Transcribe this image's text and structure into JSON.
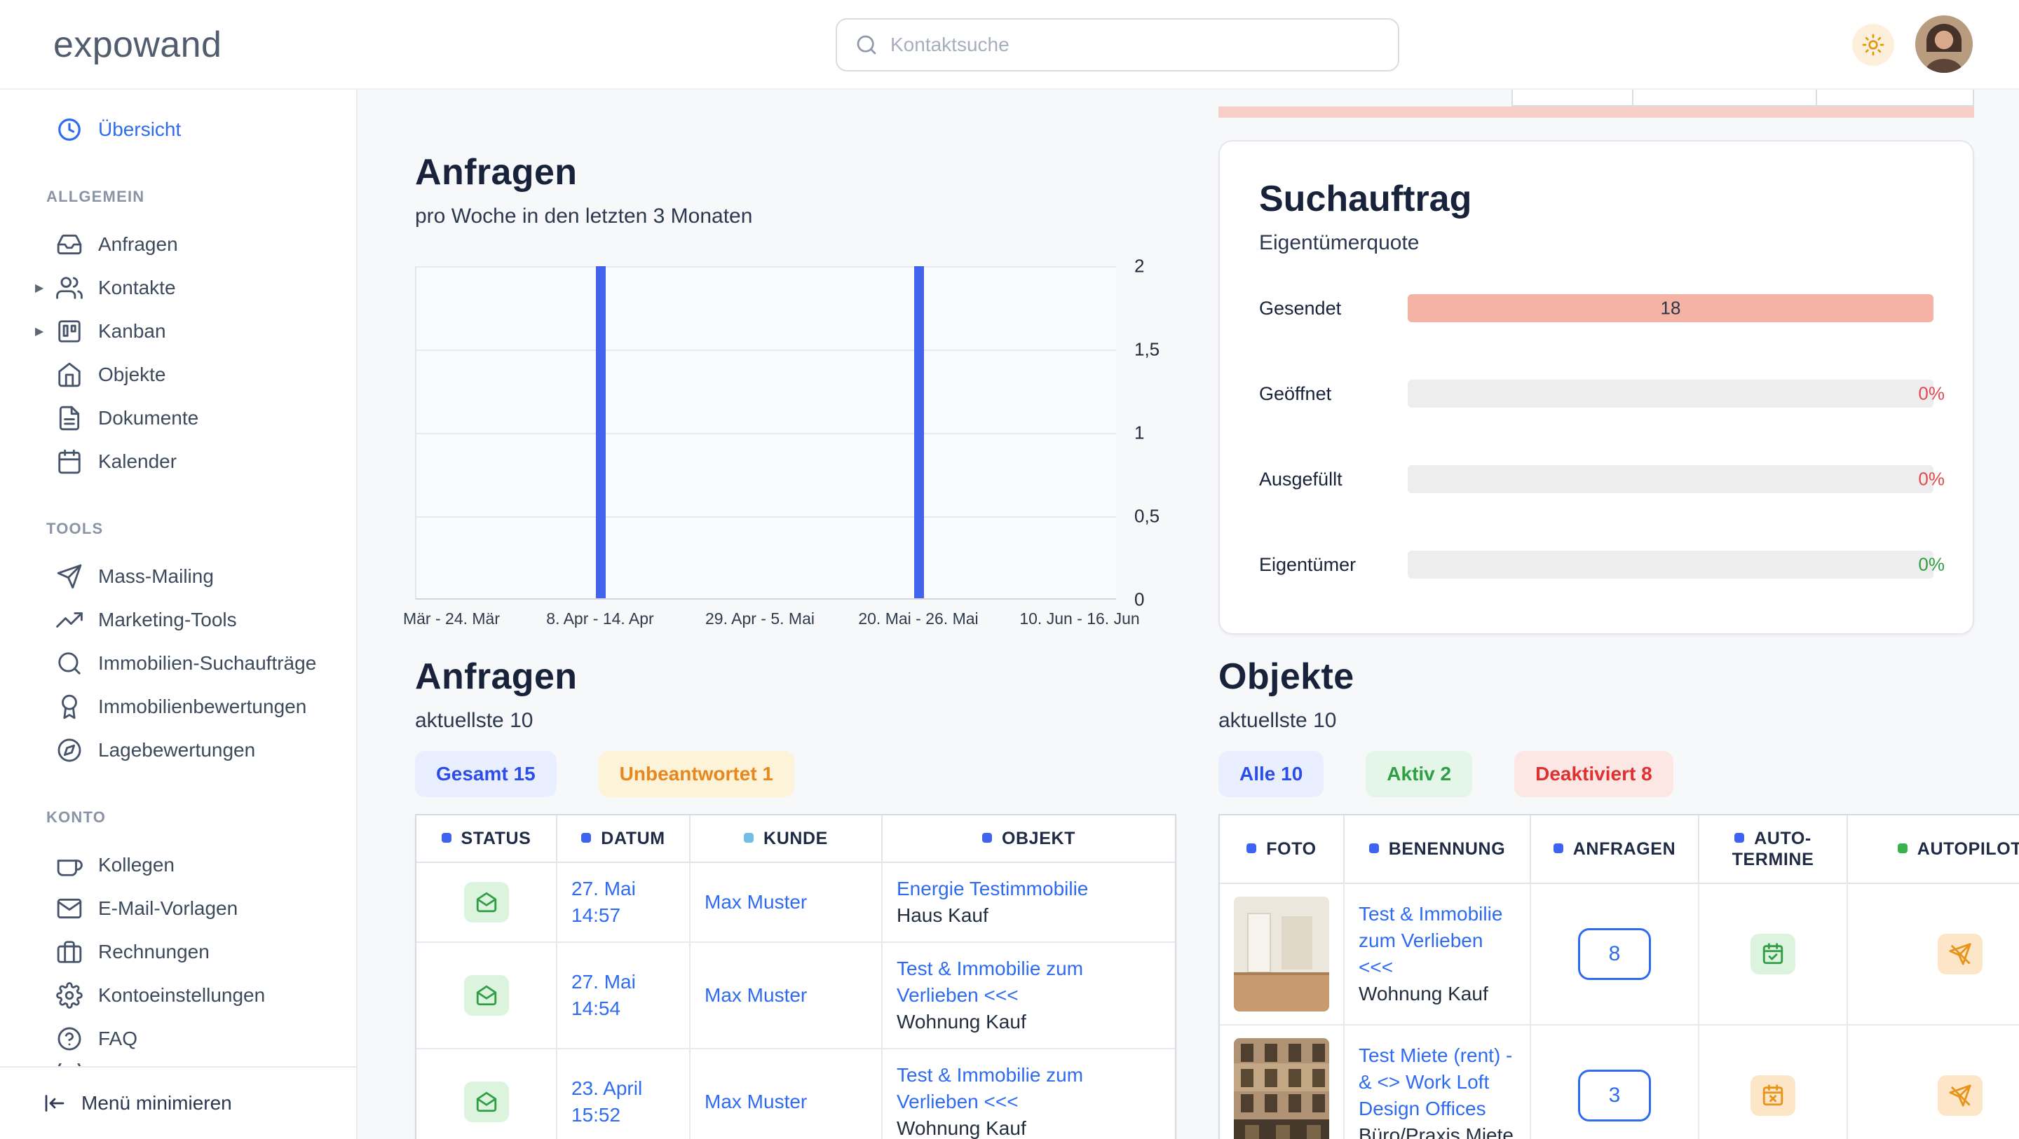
{
  "colors": {
    "accent_blue": "#2e6bf0",
    "bar_blue": "#4263ec",
    "salmon_bar": "#f5b3a6",
    "red": "#e5484d",
    "green": "#2f9e44",
    "orange": "#e8871e",
    "header_dot_blue": "#3e63f0",
    "header_dot_cyan": "#72bde6",
    "header_dot_green": "#37b24d"
  },
  "topbar": {
    "logo": "expowand",
    "search_placeholder": "Kontaktsuche",
    "theme_icon": "sun-icon",
    "avatar": "user-avatar"
  },
  "sidebar": {
    "overview_label": "Übersicht",
    "sections": [
      {
        "label": "ALLGEMEIN",
        "items": [
          {
            "label": "Anfragen",
            "icon": "inbox-icon"
          },
          {
            "label": "Kontakte",
            "icon": "users-icon",
            "expandable": true
          },
          {
            "label": "Kanban",
            "icon": "kanban-icon",
            "expandable": true
          },
          {
            "label": "Objekte",
            "icon": "home-icon"
          },
          {
            "label": "Dokumente",
            "icon": "document-icon"
          },
          {
            "label": "Kalender",
            "icon": "calendar-icon"
          }
        ]
      },
      {
        "label": "TOOLS",
        "items": [
          {
            "label": "Mass-Mailing",
            "icon": "send-icon"
          },
          {
            "label": "Marketing-Tools",
            "icon": "trending-up-icon"
          },
          {
            "label": "Immobilien-Suchaufträge",
            "icon": "search-icon"
          },
          {
            "label": "Immobilienbewertungen",
            "icon": "award-icon"
          },
          {
            "label": "Lagebewertungen",
            "icon": "compass-icon"
          }
        ]
      },
      {
        "label": "KONTO",
        "items": [
          {
            "label": "Kollegen",
            "icon": "coffee-icon"
          },
          {
            "label": "E-Mail-Vorlagen",
            "icon": "mail-icon"
          },
          {
            "label": "Rechnungen",
            "icon": "briefcase-icon"
          },
          {
            "label": "Kontoeinstellungen",
            "icon": "gear-icon"
          },
          {
            "label": "FAQ",
            "icon": "help-icon"
          }
        ]
      }
    ],
    "minimize_label": "Menü minimieren"
  },
  "main": {
    "chart_section": {
      "title": "Anfragen",
      "subtitle": "pro Woche in den letzten 3 Monaten"
    },
    "chart_data": {
      "type": "bar",
      "title": "Anfragen",
      "subtitle": "pro Woche in den letzten 3 Monaten",
      "categories": [
        "Mär - 24. Mär",
        "8. Apr - 14. Apr",
        "29. Apr - 5. Mai",
        "20. Mai - 26. Mai",
        "10. Jun - 16. Jun"
      ],
      "values": [
        0,
        2,
        0,
        2,
        0
      ],
      "ylim": [
        0,
        2
      ],
      "y_ticks": [
        "2",
        "1,5",
        "1",
        "0,5",
        "0"
      ],
      "x_tick_positions_pct": [
        5.2,
        26.4,
        49.2,
        71.8,
        94.8
      ],
      "bars": [
        {
          "x_pct": 26.4,
          "value": 2
        },
        {
          "x_pct": 71.8,
          "value": 2
        }
      ],
      "bar_color": "#4263ec",
      "grid": true,
      "legend": false
    },
    "anfragen": {
      "title": "Anfragen",
      "subtitle": "aktuellste 10",
      "filters": [
        {
          "label": "Gesamt 15"
        },
        {
          "label": "Unbeantwortet 1"
        }
      ],
      "headers": [
        {
          "label": "STATUS",
          "dot": "#3e63f0"
        },
        {
          "label": "DATUM",
          "dot": "#3e63f0"
        },
        {
          "label": "KUNDE",
          "dot": "#72bde6"
        },
        {
          "label": "OBJEKT",
          "dot": "#3e63f0"
        }
      ],
      "rows": [
        {
          "status_icon": "envelope-open-icon",
          "date": "27. Mai",
          "time": "14:57",
          "kunde": "Max Muster",
          "objekt": "Energie Testimmobilie",
          "objekt_sub": "Haus Kauf"
        },
        {
          "status_icon": "envelope-open-icon",
          "date": "27. Mai",
          "time": "14:54",
          "kunde": "Max Muster",
          "objekt": "Test & Immobilie zum Verlieben <<<",
          "objekt_sub": "Wohnung Kauf"
        },
        {
          "status_icon": "envelope-open-icon",
          "date": "23. April",
          "time": "15:52",
          "kunde": "Max Muster",
          "objekt": "Test & Immobilie zum Verlieben <<<",
          "objekt_sub": "Wohnung Kauf"
        }
      ]
    },
    "suchauftrag": {
      "title": "Suchauftrag",
      "subtitle": "Eigentümerquote",
      "rows": [
        {
          "label": "Gesendet",
          "value": "18",
          "style": "filled",
          "bar_color": "#f5b3a6"
        },
        {
          "label": "Geöffnet",
          "value": "0%",
          "value_color": "#e5484d"
        },
        {
          "label": "Ausgefüllt",
          "value": "0%",
          "value_color": "#e5484d"
        },
        {
          "label": "Eigentümer",
          "value": "0%",
          "value_color": "#2f9e44"
        }
      ]
    },
    "objekte": {
      "title": "Objekte",
      "subtitle": "aktuellste 10",
      "filters": [
        {
          "label": "Alle 10"
        },
        {
          "label": "Aktiv 2"
        },
        {
          "label": "Deaktiviert 8"
        }
      ],
      "headers": [
        {
          "label": "FOTO",
          "dot": "#3e63f0"
        },
        {
          "label": "BENENNUNG",
          "dot": "#3e63f0"
        },
        {
          "label": "ANFRAGEN",
          "dot": "#3e63f0"
        },
        {
          "label": "AUTO-TERMINE",
          "dot": "#3e63f0"
        },
        {
          "label": "AUTOPILOT",
          "dot": "#37b24d"
        }
      ],
      "rows": [
        {
          "photo": "interior-photo",
          "name": "Test & Immobilie zum Verlieben <<<",
          "name_sub": "Wohnung Kauf",
          "anfragen_count": "8",
          "auto_termine": "calendar-check-icon",
          "autopilot": "autopilot-off-icon"
        },
        {
          "photo": "building-photo",
          "name": "Test Miete (rent) - & <> Work Loft Design Offices",
          "name_sub": "Büro/Praxis Miete",
          "anfragen_count": "3",
          "auto_termine": "calendar-x-icon",
          "autopilot": "autopilot-off-icon"
        }
      ]
    }
  }
}
